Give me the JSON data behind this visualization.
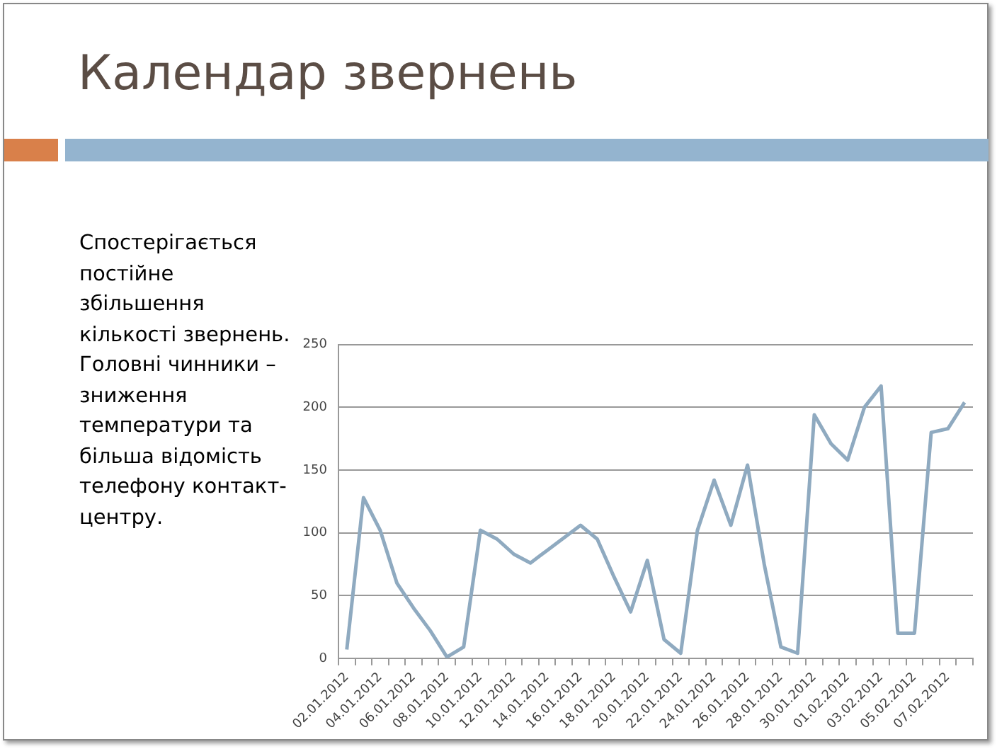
{
  "chart_data": {
    "type": "line",
    "title": "Календар звернень",
    "annotations": [
      "Спостерігається постійне збільшення кількості звернень. Головні чинники – зниження температури та більша відомість телефону контакт-центру."
    ],
    "categories": [
      "02.01.2012",
      null,
      "04.01.2012",
      null,
      "06.01.2012",
      null,
      "08.01.2012",
      null,
      "10.01.2012",
      null,
      "12.01.2012",
      null,
      "14.01.2012",
      null,
      "16.01.2012",
      null,
      "18.01.2012",
      null,
      "20.01.2012",
      null,
      "22.01.2012",
      null,
      "24.01.2012",
      null,
      "26.01.2012",
      null,
      "28.01.2012",
      null,
      "30.01.2012",
      null,
      "01.02.2012",
      null,
      "03.02.2012",
      null,
      "05.02.2012",
      null,
      "07.02.2012",
      null
    ],
    "series": [
      {
        "color": "#8faac0",
        "values": [
          7,
          128,
          102,
          60,
          40,
          22,
          1,
          9,
          102,
          95,
          83,
          76,
          86,
          96,
          106,
          95,
          65,
          37,
          78,
          15,
          4,
          102,
          142,
          106,
          154,
          75,
          9,
          4,
          194,
          171,
          158,
          200,
          217,
          20,
          20,
          180,
          183,
          204
        ]
      }
    ],
    "ylim": [
      0,
      250
    ],
    "yticks": [
      0,
      50,
      100,
      150,
      200,
      250
    ],
    "grid": "y",
    "legend": false,
    "marker": "none",
    "line_style": "solid"
  }
}
